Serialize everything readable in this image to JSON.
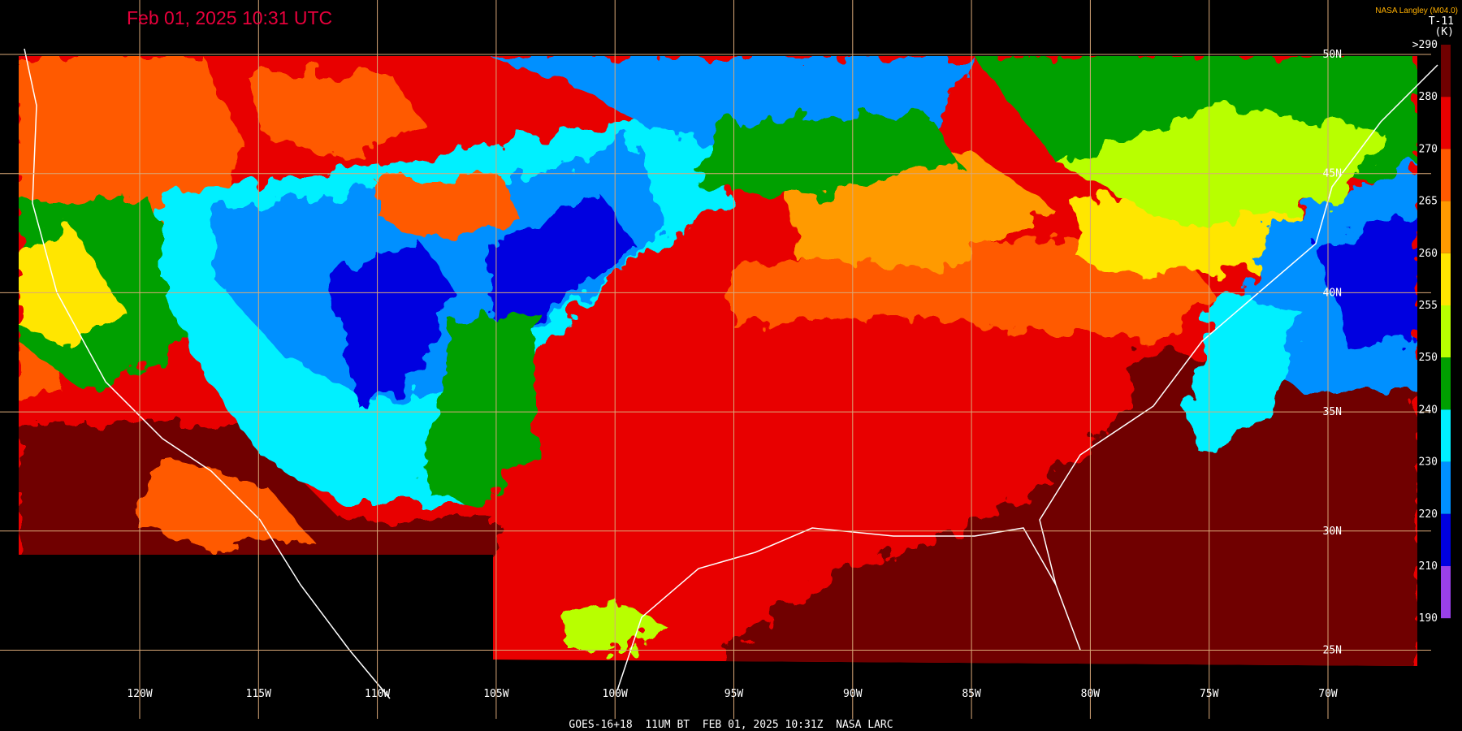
{
  "header": {
    "title": "Feb 01, 2025 10:31 UTC",
    "credit": "NASA Langley (M04.0)"
  },
  "colorbar": {
    "product": "T-11",
    "unit": "(K)",
    "ticks": [
      {
        "value": 290,
        "label": ">290"
      },
      280,
      270,
      265,
      260,
      255,
      250,
      240,
      230,
      220,
      210,
      190
    ],
    "colors": [
      "#700000",
      "#e80000",
      "#ff5a00",
      "#ff9a00",
      "#ffe600",
      "#b8ff00",
      "#00a000",
      "#00f0ff",
      "#0090ff",
      "#0000e0",
      "#9a40e8"
    ]
  },
  "longitudes": [
    "120W",
    "115W",
    "110W",
    "105W",
    "100W",
    "95W",
    "90W",
    "85W",
    "80W",
    "75W",
    "70W"
  ],
  "latitudes": [
    "50N",
    "45N",
    "40N",
    "35N",
    "30N",
    "25N"
  ],
  "footer": "GOES-16+18  11UM BT  FEB 01, 2025 10:31Z  NASA LARC"
}
